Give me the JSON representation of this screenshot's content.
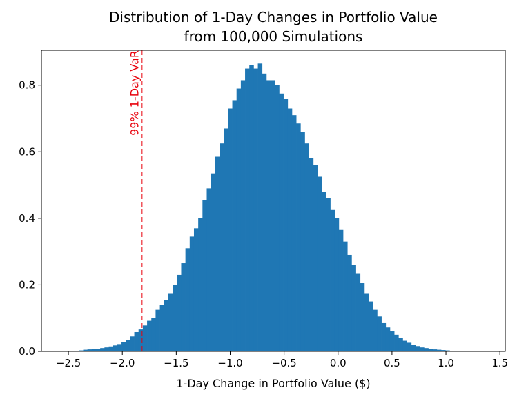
{
  "chart_data": {
    "type": "bar",
    "title": "Distribution of 1-Day Changes in Portfolio Value\nfrom 100,000 Simulations",
    "xlabel": "1-Day Change in Portfolio Value ($)",
    "ylabel": "",
    "xlim": [
      -2.75,
      1.55
    ],
    "ylim": [
      0,
      0.905
    ],
    "grid": false,
    "legend": "none",
    "bar_color": "#1f77b4",
    "xticks": [
      -2.5,
      -2.0,
      -1.5,
      -1.0,
      -0.5,
      0.0,
      0.5,
      1.0,
      1.5
    ],
    "xtick_labels": [
      "−2.5",
      "−2.0",
      "−1.5",
      "−1.0",
      "−0.5",
      "0.0",
      "0.5",
      "1.0",
      "1.5"
    ],
    "yticks": [
      0.0,
      0.2,
      0.4,
      0.6,
      0.8
    ],
    "ytick_labels": [
      "0.0",
      "0.2",
      "0.4",
      "0.6",
      "0.8"
    ],
    "bin_width": 0.0395,
    "bin_start": -2.6,
    "densities": [
      0.001,
      0.001,
      0.001,
      0.002,
      0.002,
      0.003,
      0.005,
      0.006,
      0.008,
      0.008,
      0.01,
      0.012,
      0.015,
      0.018,
      0.022,
      0.028,
      0.035,
      0.045,
      0.058,
      0.066,
      0.078,
      0.092,
      0.1,
      0.125,
      0.14,
      0.155,
      0.175,
      0.2,
      0.23,
      0.265,
      0.31,
      0.345,
      0.37,
      0.4,
      0.455,
      0.49,
      0.535,
      0.585,
      0.625,
      0.67,
      0.73,
      0.755,
      0.79,
      0.815,
      0.85,
      0.86,
      0.85,
      0.865,
      0.835,
      0.815,
      0.815,
      0.8,
      0.775,
      0.76,
      0.73,
      0.71,
      0.685,
      0.66,
      0.625,
      0.58,
      0.56,
      0.525,
      0.48,
      0.46,
      0.425,
      0.4,
      0.365,
      0.33,
      0.29,
      0.26,
      0.235,
      0.205,
      0.175,
      0.15,
      0.125,
      0.105,
      0.085,
      0.072,
      0.06,
      0.05,
      0.04,
      0.032,
      0.026,
      0.02,
      0.016,
      0.012,
      0.01,
      0.008,
      0.006,
      0.005,
      0.004,
      0.003,
      0.002,
      0.002,
      0.001,
      0.001,
      0.001,
      0.001,
      0.001
    ],
    "annotations": [
      {
        "type": "vline",
        "x": -1.82,
        "style": "dashed",
        "color": "#e8000b",
        "text": "99% 1-Day VaR"
      }
    ]
  }
}
